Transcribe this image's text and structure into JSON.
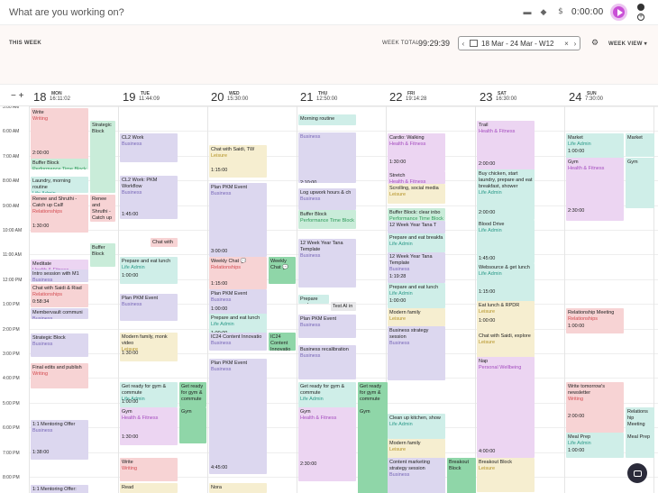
{
  "topbar": {
    "task_placeholder": "What are you working on?",
    "timer": "0:00:00",
    "icons": [
      "folder-icon",
      "tag-icon",
      "dollar-icon",
      "play-icon"
    ]
  },
  "weekbar": {
    "this_week": "THIS WEEK",
    "week_total_label": "WEEK TOTAL",
    "week_total": "99:29:39",
    "range": "18 Mar - 24 Mar - W12",
    "week_view": "WEEK VIEW"
  },
  "zoom": "− +",
  "days": [
    {
      "num": "18",
      "name": "MON",
      "time": "16:11:02"
    },
    {
      "num": "19",
      "name": "TUE",
      "time": "11:44:09"
    },
    {
      "num": "20",
      "name": "WED",
      "time": "15:30:00"
    },
    {
      "num": "21",
      "name": "THU",
      "time": "12:50:00"
    },
    {
      "num": "22",
      "name": "FRI",
      "time": "19:14:28"
    },
    {
      "num": "23",
      "name": "SAT",
      "time": "16:30:00"
    },
    {
      "num": "24",
      "name": "SUN",
      "time": "7:30:00"
    }
  ],
  "hours": [
    "5:00 AM",
    "6:00 AM",
    "7:00 AM",
    "8:00 AM",
    "9:00 AM",
    "10:00 AM",
    "11:00 AM",
    "12:00 PM",
    "1:00 PM",
    "2:00 PM",
    "3:00 PM",
    "4:00 PM",
    "5:00 PM",
    "6:00 PM",
    "7:00 PM",
    "8:00 PM"
  ],
  "events": [
    {
      "title": "Write",
      "project": "Writing",
      "duration": "2:00:00",
      "color": "red"
    },
    {
      "title": "Buffer Block",
      "project": "Performance Time Block",
      "duration": "",
      "color": "grn"
    },
    {
      "title": "Strategic Block",
      "project": "",
      "duration": "",
      "color": "grn"
    },
    {
      "title": "Laundry, morning routine",
      "project": "Life Admin",
      "duration": "",
      "color": "mint"
    },
    {
      "title": "Renee and Shruthi - Catch up Call!",
      "project": "Relationships",
      "duration": "1:30:00",
      "color": "red"
    },
    {
      "title": "Renee and Shruthi - Catch up",
      "project": "",
      "duration": "",
      "color": "red"
    },
    {
      "title": "Buffer Block",
      "project": "",
      "duration": "",
      "color": "grn"
    },
    {
      "title": "Meditate",
      "project": "Health & Fitness",
      "duration": "",
      "color": "lav"
    },
    {
      "title": "Intro session with M1",
      "project": "Business",
      "duration": "",
      "color": "pur"
    },
    {
      "title": "Chat with Saidi & Riad",
      "project": "Relationships",
      "duration": "0:58:34",
      "color": "red"
    },
    {
      "title": "Membervault communi",
      "project": "Business",
      "duration": "",
      "color": "pur"
    },
    {
      "title": "Strategic Block",
      "project": "Business",
      "duration": "",
      "color": "pur"
    },
    {
      "title": "Final edits and publish",
      "project": "Writing",
      "duration": "",
      "color": "red"
    },
    {
      "title": "1:1 Mentoring Offer",
      "project": "Business",
      "duration": "1:38:00",
      "color": "pur"
    },
    {
      "title": "1:1 Mentoring Offer:",
      "project": "",
      "duration": "",
      "color": "pur"
    },
    {
      "title": "CL2 Work",
      "project": "Business",
      "duration": "",
      "color": "pur"
    },
    {
      "title": "CL2 Work: PKM Workflow",
      "project": "Business",
      "duration": "1:45:00",
      "color": "pur"
    },
    {
      "title": "Chat with",
      "project": "",
      "duration": "",
      "color": "red"
    },
    {
      "title": "Prepare and eat lunch",
      "project": "Life Admin",
      "duration": "1:00:00",
      "color": "mint"
    },
    {
      "title": "Plan PKM Event",
      "project": "Business",
      "duration": "",
      "color": "pur"
    },
    {
      "title": "Modern family, monk video",
      "project": "Leisure",
      "duration": "1:30:00",
      "color": "yel"
    },
    {
      "title": "Get ready for gym & commute",
      "project": "Life Admin",
      "duration": "1:00:00",
      "color": "mint"
    },
    {
      "title": "Get ready for gym & commute",
      "project": "",
      "duration": "",
      "color": "dg"
    },
    {
      "title": "Gym",
      "project": "Health & Fitness",
      "duration": "1:30:00",
      "color": "lav"
    },
    {
      "title": "Gym",
      "project": "",
      "duration": "",
      "color": "dg"
    },
    {
      "title": "Write",
      "project": "Writing",
      "duration": "",
      "color": "red"
    },
    {
      "title": "Read",
      "project": "",
      "duration": "",
      "color": "yel"
    },
    {
      "title": "Chat with Saidi, TW",
      "project": "Leisure",
      "duration": "1:15:00",
      "color": "yel"
    },
    {
      "title": "Plan PKM Event",
      "project": "Business",
      "duration": "3:00:00",
      "color": "pur"
    },
    {
      "title": "Weekly Chat 💬",
      "project": "Relationships",
      "duration": "1:15:00",
      "color": "red"
    },
    {
      "title": "Weekly Chat 💬",
      "project": "",
      "duration": "",
      "color": "dg"
    },
    {
      "title": "Plan PKM Event",
      "project": "Business",
      "duration": "1:00:00",
      "color": "pur"
    },
    {
      "title": "Prepare and eat lunch",
      "project": "Life Admin",
      "duration": "1:00:00",
      "color": "mint"
    },
    {
      "title": "IC24 Content Innovatio",
      "project": "Business",
      "duration": "",
      "color": "pur"
    },
    {
      "title": "IC24 Content Innovatio",
      "project": "",
      "duration": "",
      "color": "dg"
    },
    {
      "title": "Plan PKM Event",
      "project": "Business",
      "duration": "4:45:00",
      "color": "pur"
    },
    {
      "title": "Nora",
      "project": "",
      "duration": "",
      "color": "yel"
    },
    {
      "title": "Morning routine",
      "project": "",
      "duration": "",
      "color": "mint"
    },
    {
      "title": "",
      "project": "Business",
      "duration": "2:10:00",
      "color": "pur"
    },
    {
      "title": "Log upwork hours & ch",
      "project": "Business",
      "duration": "",
      "color": "pur"
    },
    {
      "title": "Buffer Block",
      "project": "Performance Time Block",
      "duration": "",
      "color": "grn"
    },
    {
      "title": "12 Week Year Tana Template",
      "project": "Business",
      "duration": "",
      "color": "pur"
    },
    {
      "title": "Prepare and",
      "project": "",
      "duration": "",
      "color": "mint"
    },
    {
      "title": "Test AI in",
      "project": "",
      "duration": "",
      "color": "gry"
    },
    {
      "title": "Plan PKM Event",
      "project": "Business",
      "duration": "",
      "color": "pur"
    },
    {
      "title": "Business recalibration",
      "project": "Business",
      "duration": "",
      "color": "pur"
    },
    {
      "title": "Get ready for gym & commute",
      "project": "Life Admin",
      "duration": "",
      "color": "mint"
    },
    {
      "title": "Gym",
      "project": "Health & Fitness",
      "duration": "2:30:00",
      "color": "lav"
    },
    {
      "title": "Cardio: Walking",
      "project": "Health & Fitness",
      "duration": "1:30:00",
      "color": "lav"
    },
    {
      "title": "Stretch",
      "project": "Health & Fitness",
      "duration": "",
      "color": "lav"
    },
    {
      "title": "Scrolling, social media",
      "project": "Leisure",
      "duration": "",
      "color": "yel"
    },
    {
      "title": "Buffer Block: clear inbo",
      "project": "Performance Time Block",
      "duration": "",
      "color": "grn"
    },
    {
      "title": "12 Week Year Tana T",
      "project": "",
      "duration": "",
      "color": "pur"
    },
    {
      "title": "Prepare and eat breakfa",
      "project": "Life Admin",
      "duration": "",
      "color": "mint"
    },
    {
      "title": "12 Week Year Tana Template",
      "project": "Business",
      "duration": "1:19:28",
      "color": "pur"
    },
    {
      "title": "Prepare and eat lunch",
      "project": "Life Admin",
      "duration": "1:00:00",
      "color": "mint"
    },
    {
      "title": "Modern family",
      "project": "Leisure",
      "duration": "",
      "color": "yel"
    },
    {
      "title": "Business strategy session",
      "project": "Business",
      "duration": "",
      "color": "pur"
    },
    {
      "title": "Get ready for gym & commute",
      "project": "",
      "duration": "",
      "color": "dg"
    },
    {
      "title": "Gym",
      "project": "",
      "duration": "",
      "color": "dg"
    },
    {
      "title": "Clean up kitchen, show",
      "project": "Life Admin",
      "duration": "",
      "color": "mint"
    },
    {
      "title": "Modern family",
      "project": "Leisure",
      "duration": "",
      "color": "yel"
    },
    {
      "title": "Content marketing strategy session",
      "project": "Business",
      "duration": "",
      "color": "pur"
    },
    {
      "title": "Breakout Block",
      "project": "",
      "duration": "",
      "color": "dg"
    },
    {
      "title": "Trail",
      "project": "Health & Fitness",
      "duration": "2:00:00",
      "color": "lav"
    },
    {
      "title": "Buy chicken, start laundry, prepare and eat breakfast, shower",
      "project": "Life Admin",
      "duration": "2:00:00",
      "color": "mint"
    },
    {
      "title": "Blood Drive",
      "project": "Life Admin",
      "duration": "1:45:00",
      "color": "mint"
    },
    {
      "title": "Websource & get lunch",
      "project": "Life Admin",
      "duration": "1:15:00",
      "color": "mint"
    },
    {
      "title": "Eat lunch & RPDR",
      "project": "Leisure",
      "duration": "1:00:00",
      "color": "yel"
    },
    {
      "title": "Chat with Saidi, explore",
      "project": "Leisure",
      "duration": "",
      "color": "yel"
    },
    {
      "title": "Nap",
      "project": "Personal Wellbeing",
      "duration": "4:00:00",
      "color": "lav"
    },
    {
      "title": "Breakout Block",
      "project": "Leisure",
      "duration": "",
      "color": "yel"
    },
    {
      "title": "Market",
      "project": "Life Admin",
      "duration": "1:00:00",
      "color": "mint"
    },
    {
      "title": "Market",
      "project": "",
      "duration": "",
      "color": "mint"
    },
    {
      "title": "Gym",
      "project": "Health & Fitness",
      "duration": "2:30:00",
      "color": "lav"
    },
    {
      "title": "Gym",
      "project": "",
      "duration": "",
      "color": "mint"
    },
    {
      "title": "Relationship Meeting",
      "project": "Relationships",
      "duration": "1:00:00",
      "color": "red"
    },
    {
      "title": "Write tomorrow's newsletter",
      "project": "Writing",
      "duration": "2:00:00",
      "color": "red"
    },
    {
      "title": "Relations hip Meeting",
      "project": "",
      "duration": "",
      "color": "mint"
    },
    {
      "title": "Meal Prep",
      "project": "Life Admin",
      "duration": "1:00:00",
      "color": "mint"
    },
    {
      "title": "Meal Prep",
      "project": "",
      "duration": "",
      "color": "mint"
    }
  ]
}
